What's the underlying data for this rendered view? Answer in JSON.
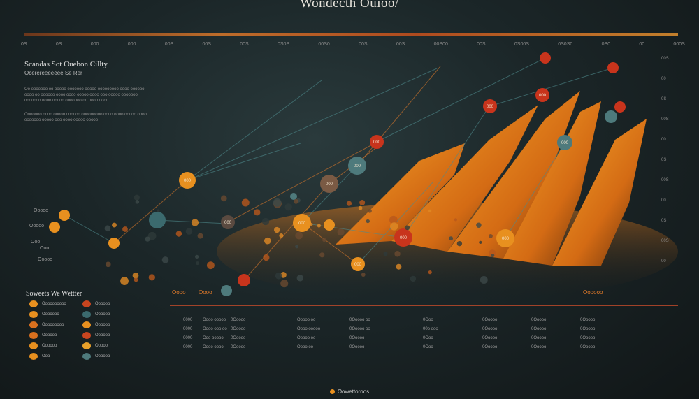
{
  "title": "Wondecth Ouioo/",
  "footer": "Oowettoroos",
  "top_ticks": [
    "0S",
    "0S",
    "000",
    "000",
    "00S",
    "00S",
    "00S",
    "0S0S",
    "00S0",
    "00S",
    "00S",
    "00S00",
    "00S",
    "0S00S",
    "0S0S0",
    "0S0",
    "00",
    "000S"
  ],
  "side": {
    "heading": "Scandas Sot Ouebon Cillty",
    "subheading": "Ocerereeeeeee Se Rer",
    "para1": "Oo ooooooo oo ooooo ooooooo ooooo ooooooooo oooo oooooo oooo oo oooooo oooo oooo ooooo oooo ooo ooooo ooooooo ooooooo oooo ooooo ooooooo oo oooo oooo",
    "para2": "Ooooooo oooo ooooo oooooo ooooooooo oooo oooo ooooo oooo ooooooo ooooo ooo oooo ooooo ooooo"
  },
  "left_labels": [
    "Ooooo",
    "Ooooo",
    "Ooo",
    "Ooo",
    "Ooooo"
  ],
  "legend": {
    "title": "Soweets We Wettter",
    "items": [
      {
        "label": "Oooooooooo",
        "label2": "Oooooo",
        "c1": "#e8901f",
        "c2": "#c8451f"
      },
      {
        "label": "Ooooooo",
        "label2": "Oooooo",
        "c1": "#e8901f",
        "c2": "#3b6a6e"
      },
      {
        "label": "Ooooooooo",
        "label2": "Oooooo",
        "c1": "#d9701e",
        "c2": "#e8901f"
      },
      {
        "label": "Oooooo",
        "label2": "Oooooo",
        "c1": "#d9701e",
        "c2": "#c8451f"
      },
      {
        "label": "Oooooo",
        "label2": "Ooooo",
        "c1": "#e8901f",
        "c2": "#e8a02a"
      },
      {
        "label": "Ooo",
        "label2": "Oooooo",
        "c1": "#e8901f",
        "c2": "#4e7a7c"
      }
    ]
  },
  "badges": {
    "left": "Oooo",
    "left2": "Oooo",
    "right": "Oooooo"
  },
  "table_cols": [
    [
      "0000",
      "0000",
      "0000",
      "0000"
    ],
    [
      "Oooo ooooo",
      "Oooo ooo oo",
      "Ooo ooooo",
      "Oooo oooo"
    ],
    [
      "0Ooooo",
      "0Ooooo",
      "0Ooooo",
      "0Ooooo"
    ],
    [
      "Ooooo oo",
      "Oooo ooooo",
      "Ooooo oo",
      "Oooo oo"
    ],
    [
      "0Ooooo oo",
      "0Ooooo oo",
      "0Ooooo",
      "0Ooooo"
    ],
    [
      "0Ooo",
      "00o ooo",
      "0Ooo",
      "0Ooo"
    ],
    [
      "0Ooooo",
      "0Ooooo",
      "0Ooooo",
      "0Ooooo"
    ],
    [
      "0Ooooo",
      "0Ooooo",
      "0Ooooo",
      "0Ooooo"
    ],
    [
      "0Ooooo",
      "0Ooooo",
      "0Ooooo",
      "0Ooooo"
    ]
  ],
  "right_ticks": [
    "00S",
    "00",
    "0S",
    "00S",
    "00",
    "0S",
    "00S",
    "00",
    "0S",
    "00S",
    "00"
  ],
  "bubble_labels": [
    "000",
    "000",
    "000",
    "000",
    "000",
    "000",
    "000",
    "000",
    "000",
    "000",
    "000",
    "000"
  ],
  "colors": {
    "orange": "#e8901f",
    "red": "#c8341c",
    "teal": "#4e7a7c",
    "accent": "#d9782a"
  }
}
